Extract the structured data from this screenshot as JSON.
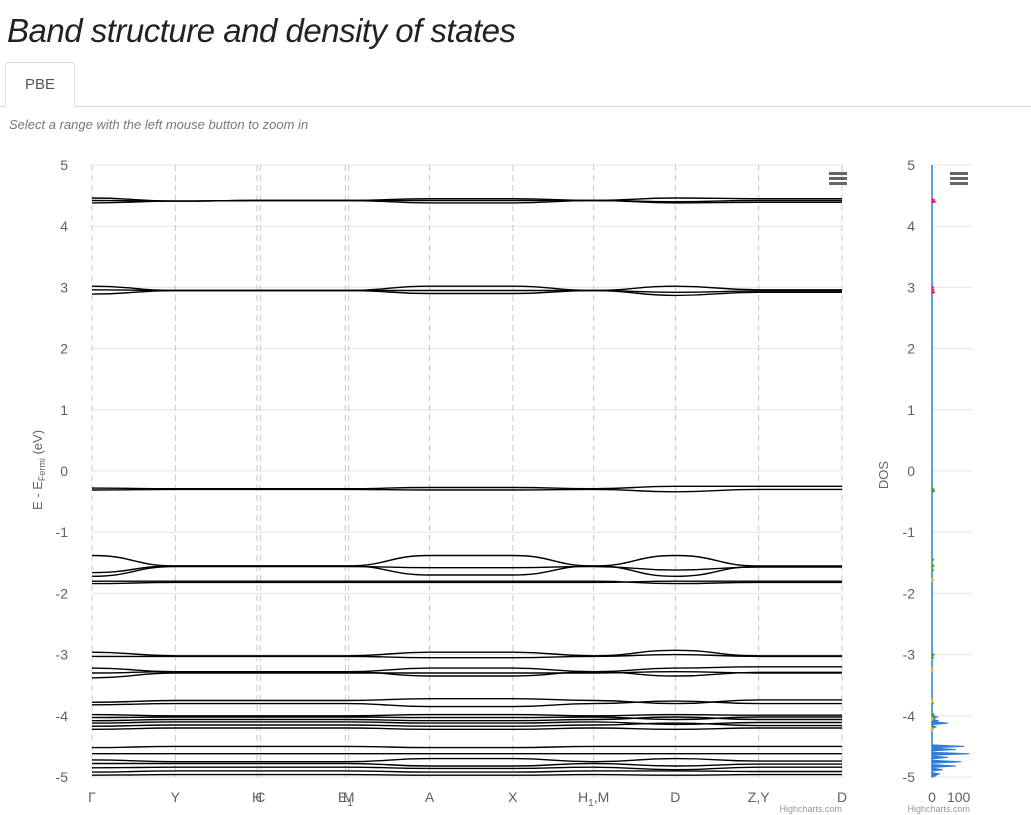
{
  "page": {
    "title": "Band structure and density of states",
    "tabs": [
      {
        "label": "PBE",
        "active": true
      }
    ],
    "zoom_hint": "Select a range with the left mouse button to zoom in"
  },
  "chart_data": [
    {
      "type": "line",
      "title": "",
      "ylabel_main": "E - E",
      "ylabel_sub": "Fermi",
      "ylabel_unit": " (eV)",
      "ylim": [
        -5,
        5
      ],
      "yticks": [
        5,
        4,
        3,
        2,
        1,
        0,
        -1,
        -2,
        -3,
        -4,
        -5
      ],
      "grid": true,
      "xticks": [
        {
          "label": "Γ",
          "pos": 0.0
        },
        {
          "label": "Y",
          "pos": 1.0
        },
        {
          "label": "H",
          "pos": 1.98
        },
        {
          "label": "C",
          "pos": 2.02
        },
        {
          "label": "E",
          "pos": 3.04
        },
        {
          "label": "M",
          "pos": 3.08
        },
        {
          "label": "A",
          "pos": 4.05
        },
        {
          "label": "X",
          "pos": 5.05
        },
        {
          "label": "H",
          "pos": 6.02
        },
        {
          "label": "D",
          "pos": 7.0
        },
        {
          "label": "Z,Y",
          "pos": 8.0
        },
        {
          "label": "D",
          "pos": 9.0
        }
      ],
      "xtick_subscripts": {
        "4": "1",
        "8": "1"
      },
      "xtick_suffix": {
        "8": ",M"
      },
      "xlim": [
        0,
        9.0
      ],
      "segment_breaks": [
        1.98,
        2.02,
        3.04,
        3.08,
        6.02,
        8.0
      ],
      "bands": [
        {
          "name": "b1",
          "values": [
            4.46,
            4.41,
            4.42,
            4.42,
            4.38,
            4.38,
            4.42,
            4.46,
            4.45
          ]
        },
        {
          "name": "b2",
          "values": [
            4.42,
            4.41,
            4.42,
            4.42,
            4.42,
            4.42,
            4.42,
            4.4,
            4.42
          ]
        },
        {
          "name": "b3",
          "values": [
            4.38,
            4.41,
            4.42,
            4.42,
            4.45,
            4.45,
            4.42,
            4.38,
            4.39
          ]
        },
        {
          "name": "b4",
          "values": [
            3.02,
            2.95,
            2.95,
            2.95,
            3.02,
            3.02,
            2.95,
            3.02,
            2.96
          ]
        },
        {
          "name": "b5",
          "values": [
            2.96,
            2.95,
            2.95,
            2.95,
            2.95,
            2.95,
            2.95,
            2.92,
            2.94
          ]
        },
        {
          "name": "b6",
          "values": [
            2.89,
            2.95,
            2.95,
            2.95,
            2.9,
            2.9,
            2.95,
            2.87,
            2.92
          ]
        },
        {
          "name": "b7",
          "values": [
            -0.28,
            -0.29,
            -0.29,
            -0.29,
            -0.27,
            -0.27,
            -0.29,
            -0.25,
            -0.25
          ]
        },
        {
          "name": "b8",
          "values": [
            -0.31,
            -0.3,
            -0.3,
            -0.3,
            -0.31,
            -0.31,
            -0.3,
            -0.34,
            -0.3
          ]
        },
        {
          "name": "b9",
          "values": [
            -1.38,
            -1.55,
            -1.55,
            -1.55,
            -1.38,
            -1.38,
            -1.55,
            -1.38,
            -1.55
          ]
        },
        {
          "name": "b10",
          "values": [
            -1.66,
            -1.55,
            -1.55,
            -1.55,
            -1.7,
            -1.7,
            -1.55,
            -1.72,
            -1.56
          ]
        },
        {
          "name": "b11",
          "values": [
            -1.72,
            -1.56,
            -1.56,
            -1.56,
            -1.58,
            -1.58,
            -1.56,
            -1.62,
            -1.57
          ]
        },
        {
          "name": "b12",
          "values": [
            -1.8,
            -1.8,
            -1.8,
            -1.8,
            -1.8,
            -1.8,
            -1.8,
            -1.84,
            -1.82
          ]
        },
        {
          "name": "b13",
          "values": [
            -1.84,
            -1.82,
            -1.82,
            -1.82,
            -1.82,
            -1.82,
            -1.82,
            -1.8,
            -1.8
          ]
        },
        {
          "name": "b14",
          "values": [
            -2.96,
            -3.02,
            -3.02,
            -3.02,
            -2.96,
            -2.96,
            -3.02,
            -2.93,
            -3.02
          ]
        },
        {
          "name": "b15",
          "values": [
            -3.03,
            -3.03,
            -3.03,
            -3.03,
            -3.05,
            -3.05,
            -3.03,
            -3.0,
            -3.03
          ]
        },
        {
          "name": "b16",
          "values": [
            -3.22,
            -3.28,
            -3.28,
            -3.28,
            -3.22,
            -3.22,
            -3.28,
            -3.22,
            -3.2
          ]
        },
        {
          "name": "b17",
          "values": [
            -3.3,
            -3.28,
            -3.28,
            -3.28,
            -3.35,
            -3.35,
            -3.28,
            -3.35,
            -3.29
          ]
        },
        {
          "name": "b18",
          "values": [
            -3.38,
            -3.3,
            -3.3,
            -3.3,
            -3.3,
            -3.3,
            -3.3,
            -3.28,
            -3.3
          ]
        },
        {
          "name": "b19",
          "values": [
            -3.78,
            -3.75,
            -3.75,
            -3.75,
            -3.72,
            -3.72,
            -3.75,
            -3.8,
            -3.74
          ]
        },
        {
          "name": "b20",
          "values": [
            -3.82,
            -3.8,
            -3.8,
            -3.8,
            -3.85,
            -3.85,
            -3.8,
            -3.76,
            -3.8
          ]
        },
        {
          "name": "b21",
          "values": [
            -3.98,
            -4.0,
            -4.0,
            -4.0,
            -3.98,
            -3.98,
            -4.0,
            -3.98,
            -3.99
          ]
        },
        {
          "name": "b22",
          "values": [
            -4.03,
            -4.02,
            -4.02,
            -4.02,
            -4.03,
            -4.03,
            -4.02,
            -4.06,
            -4.02
          ]
        },
        {
          "name": "b23",
          "values": [
            -4.08,
            -4.06,
            -4.06,
            -4.06,
            -4.08,
            -4.08,
            -4.06,
            -4.02,
            -4.06
          ]
        },
        {
          "name": "b24",
          "values": [
            -4.12,
            -4.1,
            -4.1,
            -4.1,
            -4.12,
            -4.12,
            -4.1,
            -4.14,
            -4.11
          ]
        },
        {
          "name": "b25",
          "values": [
            -4.17,
            -4.15,
            -4.15,
            -4.15,
            -4.17,
            -4.17,
            -4.15,
            -4.12,
            -4.16
          ]
        },
        {
          "name": "b26",
          "values": [
            -4.22,
            -4.2,
            -4.2,
            -4.2,
            -4.22,
            -4.22,
            -4.2,
            -4.22,
            -4.2
          ]
        },
        {
          "name": "b27",
          "values": [
            -4.52,
            -4.5,
            -4.5,
            -4.5,
            -4.52,
            -4.52,
            -4.5,
            -4.5,
            -4.5
          ]
        },
        {
          "name": "b28",
          "values": [
            -4.62,
            -4.62,
            -4.62,
            -4.62,
            -4.62,
            -4.62,
            -4.62,
            -4.62,
            -4.62
          ]
        },
        {
          "name": "b29",
          "values": [
            -4.72,
            -4.75,
            -4.75,
            -4.75,
            -4.7,
            -4.7,
            -4.75,
            -4.7,
            -4.74
          ]
        },
        {
          "name": "b30",
          "values": [
            -4.78,
            -4.78,
            -4.78,
            -4.78,
            -4.82,
            -4.82,
            -4.78,
            -4.82,
            -4.79
          ]
        },
        {
          "name": "b31",
          "values": [
            -4.85,
            -4.84,
            -4.84,
            -4.84,
            -4.86,
            -4.86,
            -4.84,
            -4.88,
            -4.84
          ]
        },
        {
          "name": "b32",
          "values": [
            -4.92,
            -4.9,
            -4.9,
            -4.9,
            -4.92,
            -4.92,
            -4.9,
            -4.9,
            -4.91
          ]
        },
        {
          "name": "b33",
          "values": [
            -4.97,
            -4.96,
            -4.96,
            -4.96,
            -4.97,
            -4.97,
            -4.96,
            -4.97,
            -4.96
          ]
        }
      ],
      "credit": "Highcharts.com"
    },
    {
      "type": "area",
      "ylabel": "DOS",
      "ylim": [
        -5,
        5
      ],
      "xlim": [
        0,
        150
      ],
      "yticks": [
        5,
        4,
        3,
        2,
        1,
        0,
        -1,
        -2,
        -3,
        -4,
        -5
      ],
      "xticks": [
        0,
        100
      ],
      "series": [
        {
          "color": "#2f7ed8",
          "points": [
            [
              -4.12,
              60
            ],
            [
              -4.08,
              25
            ],
            [
              -4.05,
              10
            ],
            [
              -4.02,
              20
            ],
            [
              -4.18,
              15
            ],
            [
              -4.5,
              120
            ],
            [
              -4.55,
              90
            ],
            [
              -4.62,
              140
            ],
            [
              -4.68,
              60
            ],
            [
              -4.75,
              110
            ],
            [
              -4.82,
              90
            ],
            [
              -4.88,
              40
            ],
            [
              -4.95,
              30
            ],
            [
              -4.98,
              15
            ]
          ]
        },
        {
          "color": "#e0245e",
          "points": [
            [
              4.4,
              14
            ],
            [
              4.43,
              10
            ],
            [
              2.92,
              10
            ],
            [
              2.96,
              8
            ],
            [
              3.0,
              6
            ]
          ]
        },
        {
          "color": "#3a9c3a",
          "points": [
            [
              -0.3,
              8
            ],
            [
              -0.33,
              10
            ],
            [
              -1.45,
              6
            ],
            [
              -1.55,
              8
            ],
            [
              -1.62,
              6
            ],
            [
              -3.0,
              8
            ],
            [
              -3.05,
              6
            ],
            [
              -3.8,
              5
            ],
            [
              -3.98,
              8
            ],
            [
              -4.2,
              6
            ]
          ]
        },
        {
          "color": "#f0b400",
          "points": [
            [
              -1.78,
              6
            ],
            [
              -3.25,
              4
            ],
            [
              -3.75,
              4
            ],
            [
              -4.05,
              6
            ],
            [
              -4.22,
              5
            ]
          ]
        }
      ],
      "credit": "Highcharts.com"
    }
  ]
}
